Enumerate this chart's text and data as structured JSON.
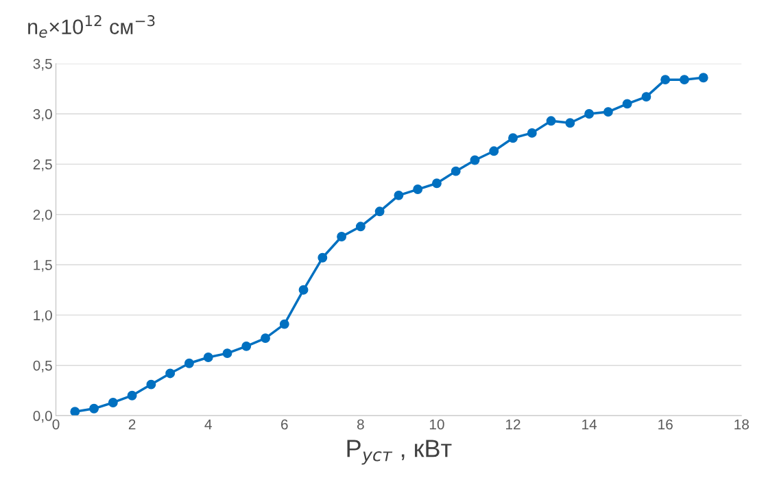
{
  "chart_data": {
    "type": "line",
    "ylabel": "n$_{e}$×10$^{12}$ см$^{−3}$",
    "xlabel": "P$_{уст}$ , кВт",
    "x": [
      0.5,
      1,
      1.5,
      2,
      2.5,
      3,
      3.5,
      4,
      4.5,
      5,
      5.5,
      6,
      6.5,
      7,
      7.5,
      8,
      8.5,
      9,
      9.5,
      10,
      10.5,
      11,
      11.5,
      12,
      12.5,
      13,
      13.5,
      14,
      14.5,
      15,
      15.5,
      16,
      16.5,
      17
    ],
    "series": [
      {
        "color": "#0070c0",
        "values": [
          0.04,
          0.07,
          0.13,
          0.2,
          0.31,
          0.42,
          0.52,
          0.58,
          0.62,
          0.69,
          0.77,
          0.91,
          1.25,
          1.57,
          1.78,
          1.88,
          2.03,
          2.19,
          2.25,
          2.31,
          2.43,
          2.54,
          2.63,
          2.76,
          2.81,
          2.93,
          2.91,
          3.0,
          3.02,
          3.1,
          3.17,
          3.34,
          3.34,
          3.36
        ]
      }
    ],
    "xlim": [
      0,
      18
    ],
    "xticks": [
      0,
      2,
      4,
      6,
      8,
      10,
      12,
      14,
      16,
      18
    ],
    "ylim": [
      0,
      3.5
    ],
    "yticks": [
      {
        "value": 0,
        "label": "0,0"
      },
      {
        "value": 0.5,
        "label": "0,5"
      },
      {
        "value": 1,
        "label": "1,0"
      },
      {
        "value": 1.5,
        "label": "1,5"
      },
      {
        "value": 2,
        "label": "2,0"
      },
      {
        "value": 2.5,
        "label": "2,5"
      },
      {
        "value": 3,
        "label": "3,0"
      },
      {
        "value": 3.5,
        "label": "3,5"
      }
    ],
    "grid": "y",
    "marker": "circle",
    "line_style": "solid",
    "legend": false
  }
}
